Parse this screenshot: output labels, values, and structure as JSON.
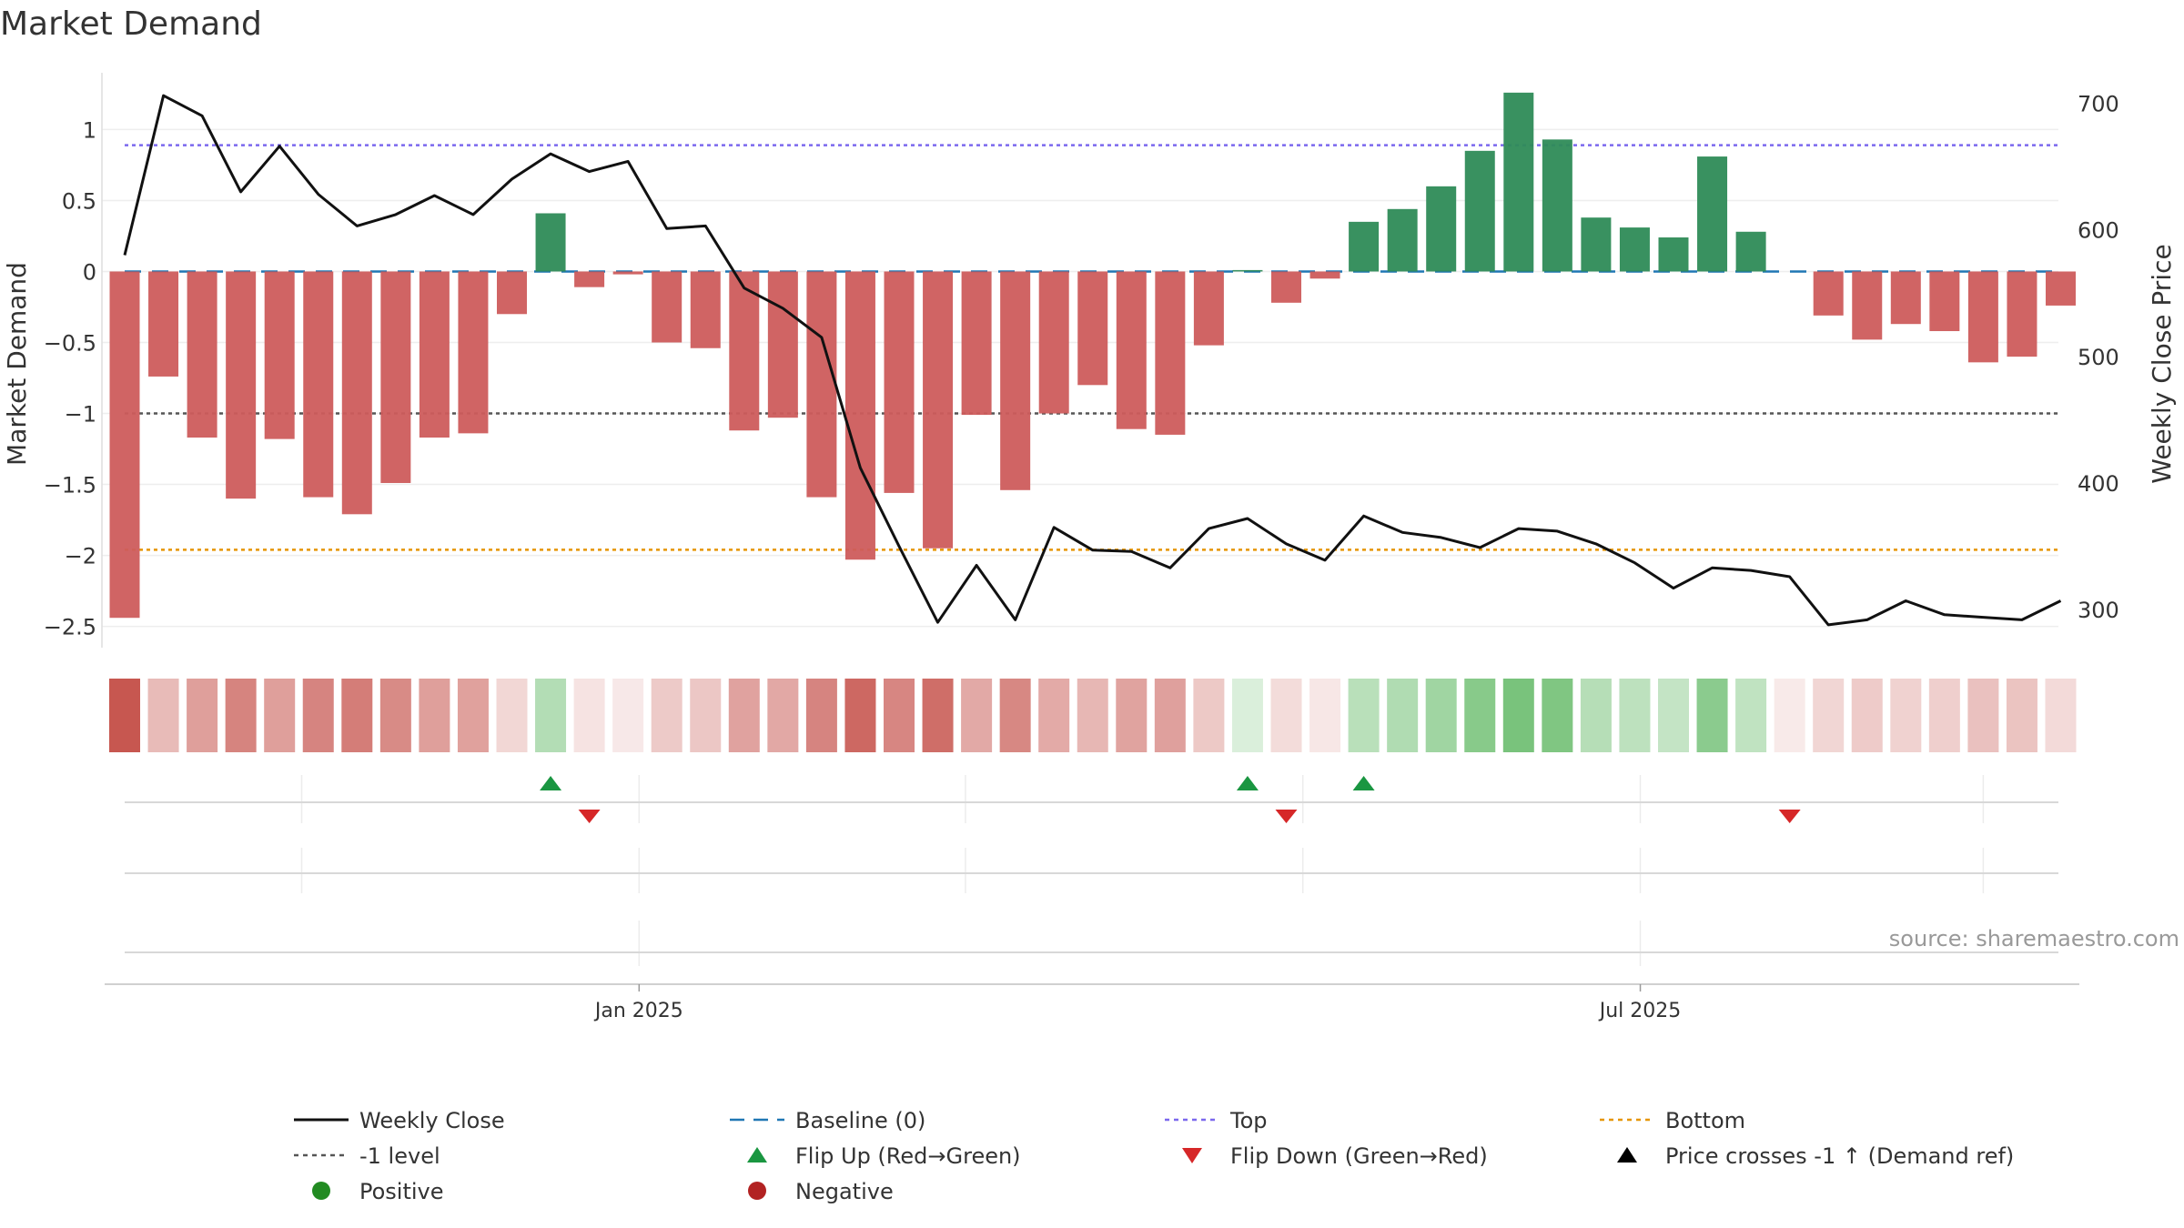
{
  "chart_data": {
    "type": "bar",
    "title": "Market Demand",
    "ylabel_left": "Market Demand",
    "ylabel_right": "Weekly Close Price",
    "source": "source: sharemaestro.com",
    "x_start": "2024-09-30",
    "x_step_days": 7,
    "ylim_left": [
      -2.65,
      1.4
    ],
    "ylim_right": [
      270,
      724
    ],
    "yticks_left": [
      1,
      0.5,
      0,
      -0.5,
      -1,
      -1.5,
      -2,
      -2.5
    ],
    "ytick_labels_left": [
      "1",
      "0.5",
      "0",
      "−0.5",
      "−1",
      "−1.5",
      "−2",
      "−2.5"
    ],
    "yticks_right": [
      700,
      600,
      500,
      400,
      300
    ],
    "ytick_labels_right": [
      "700",
      "600",
      "500",
      "400",
      "300"
    ],
    "xticks": [
      {
        "date": "2025-01-01",
        "label": "Jan 2025"
      },
      {
        "date": "2025-07-01",
        "label": "Jul 2025"
      }
    ],
    "reference_lines": {
      "baseline": 0,
      "top": 0.89,
      "minus_one": -1,
      "bottom": -1.96
    },
    "demand": [
      -2.44,
      -0.74,
      -1.17,
      -1.6,
      -1.18,
      -1.59,
      -1.71,
      -1.49,
      -1.17,
      -1.14,
      -0.3,
      0.41,
      -0.11,
      -0.02,
      -0.5,
      -0.54,
      -1.12,
      -1.03,
      -1.59,
      -2.03,
      -1.56,
      -1.95,
      -1.01,
      -1.54,
      -1.0,
      -0.8,
      -1.11,
      -1.15,
      -0.52,
      0.01,
      -0.22,
      -0.05,
      0.35,
      0.44,
      0.6,
      0.85,
      1.26,
      0.93,
      0.38,
      0.31,
      0.24,
      0.81,
      0.28,
      0.0,
      -0.31,
      -0.48,
      -0.37,
      -0.42,
      -0.64,
      -0.6,
      -0.24
    ],
    "price": [
      580,
      706,
      690,
      630,
      666,
      628,
      603,
      612,
      627,
      612,
      640,
      660,
      646,
      654,
      601,
      603,
      554,
      538,
      515,
      412,
      350,
      290,
      335,
      292,
      365,
      347,
      346,
      333,
      364,
      372,
      352,
      339,
      374,
      361,
      357,
      349,
      364,
      362,
      352,
      337,
      317,
      333,
      331,
      326,
      288,
      292,
      307,
      296,
      294,
      292,
      307
    ],
    "flip_up_weeks": [
      11,
      29,
      32
    ],
    "flip_down_weeks": [
      12,
      30,
      43
    ],
    "legend": [
      {
        "label": "Weekly Close",
        "style": "line-black"
      },
      {
        "label": "Baseline (0)",
        "style": "dash-blue"
      },
      {
        "label": "Top",
        "style": "dot-purple"
      },
      {
        "label": "Bottom",
        "style": "dot-orange"
      },
      {
        "label": "-1 level",
        "style": "dot-gray"
      },
      {
        "label": "Flip Up (Red→Green)",
        "style": "tri-up-green"
      },
      {
        "label": "Flip Down (Green→Red)",
        "style": "tri-down-red"
      },
      {
        "label": "Price crosses -1 ↑ (Demand ref)",
        "style": "tri-up-black"
      },
      {
        "label": "Positive",
        "style": "dot-green"
      },
      {
        "label": "Negative",
        "style": "dot-red"
      }
    ],
    "colors": {
      "positive": "#2e8b57",
      "negative": "#cd5c5c",
      "price_line": "#111111",
      "baseline": "#1f77b4",
      "top": "#7b68ee",
      "bottom": "#e69500",
      "minus_one": "#555555",
      "flip_up": "#1a9641",
      "flip_down": "#d62728",
      "legend_positive": "#228b22",
      "legend_negative": "#b22222"
    }
  }
}
